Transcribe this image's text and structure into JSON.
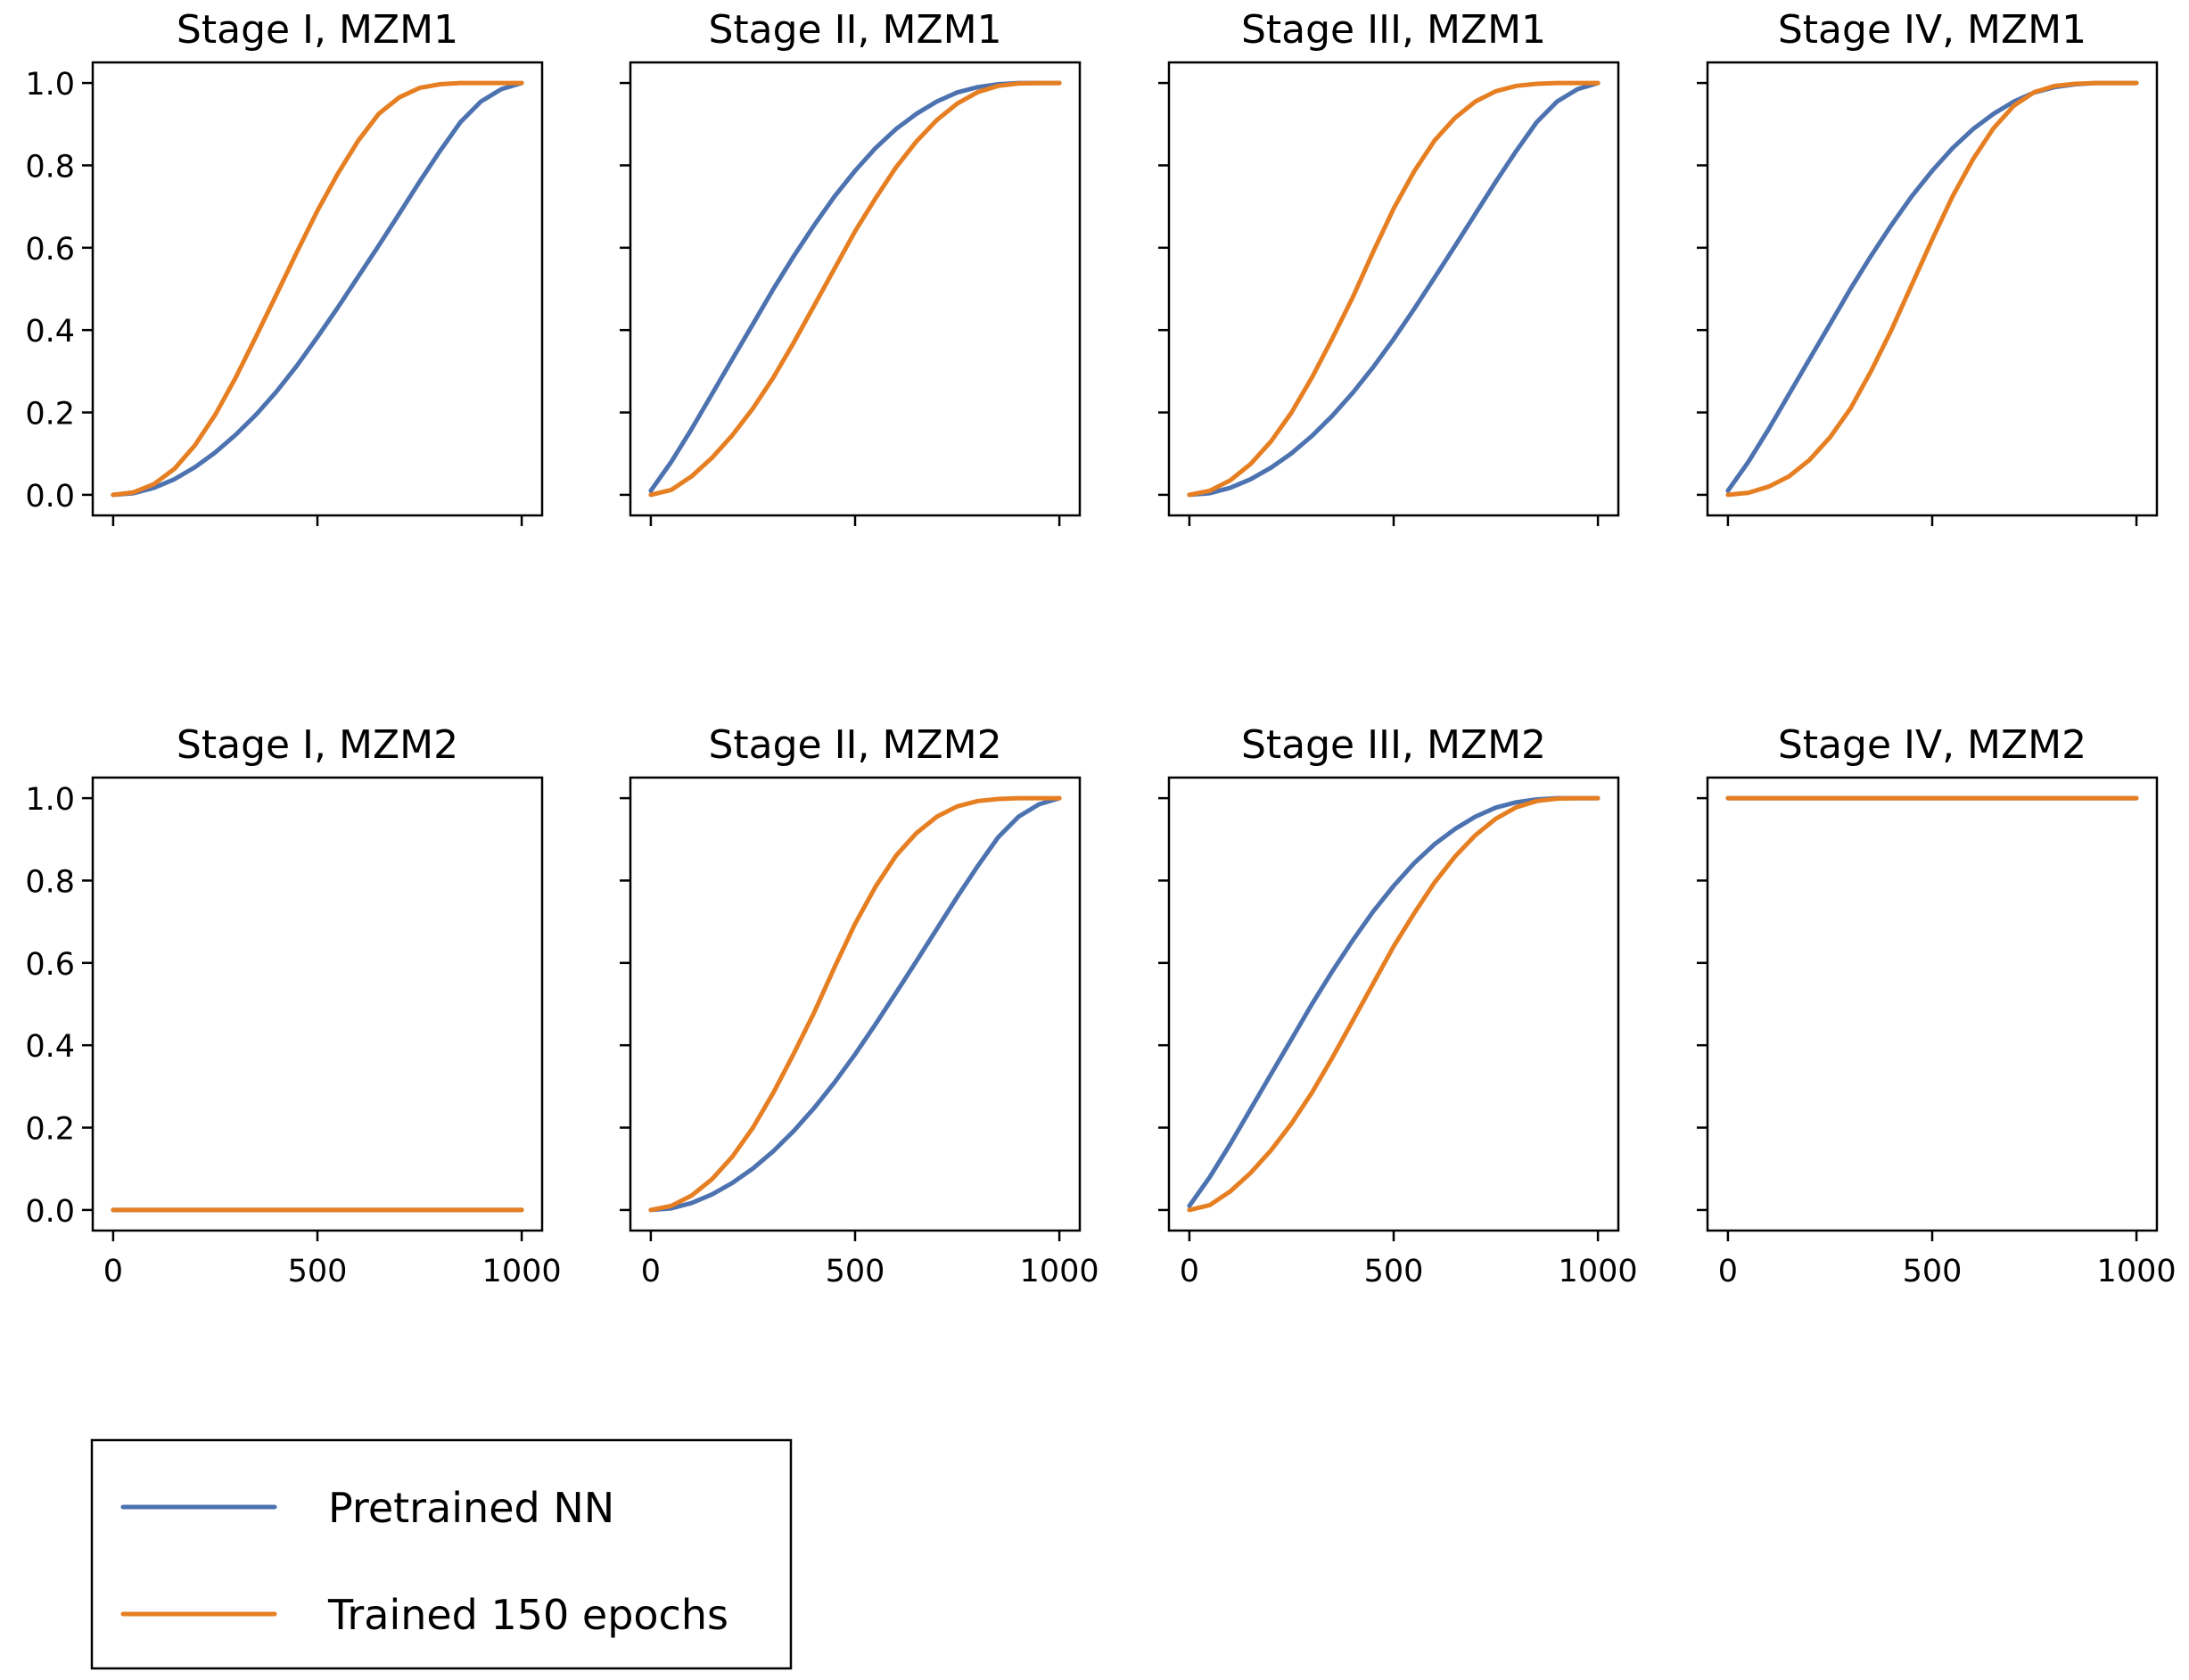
{
  "chart_data": {
    "type": "line",
    "layout": "2x4 grid of subplots",
    "sharex": true,
    "sharey": true,
    "xlim": [
      -50,
      1050
    ],
    "ylim": [
      -0.05,
      1.05
    ],
    "xticks": [
      0,
      500,
      1000
    ],
    "yticks": [
      0.0,
      0.2,
      0.4,
      0.6,
      0.8,
      1.0
    ],
    "xtick_labels": [
      "0",
      "500",
      "1000"
    ],
    "ytick_labels": [
      "0.0",
      "0.2",
      "0.4",
      "0.6",
      "0.8",
      "1.0"
    ],
    "x": [
      0,
      50,
      100,
      150,
      200,
      250,
      300,
      350,
      400,
      450,
      500,
      550,
      600,
      650,
      700,
      750,
      800,
      850,
      900,
      950,
      1000
    ],
    "legend": {
      "placement": "below the grid, left",
      "entries": [
        {
          "name": "Pretrained NN",
          "color": "#4c72b0"
        },
        {
          "name": "Trained 150 epochs",
          "color": "#e67e22"
        }
      ]
    },
    "panels": [
      {
        "title": "Stage I, MZM1",
        "series": [
          {
            "name": "Pretrained NN",
            "values": [
              0.0,
              0.004,
              0.017,
              0.038,
              0.067,
              0.103,
              0.146,
              0.195,
              0.251,
              0.314,
              0.383,
              0.455,
              0.53,
              0.605,
              0.682,
              0.76,
              0.835,
              0.905,
              0.955,
              0.985,
              1.0
            ]
          },
          {
            "name": "Trained 150 epochs",
            "values": [
              0.0,
              0.006,
              0.026,
              0.063,
              0.12,
              0.195,
              0.285,
              0.385,
              0.487,
              0.59,
              0.69,
              0.78,
              0.86,
              0.925,
              0.965,
              0.988,
              0.997,
              1.0,
              1.0,
              1.0,
              1.0
            ]
          }
        ]
      },
      {
        "title": "Stage II, MZM1",
        "series": [
          {
            "name": "Pretrained NN",
            "values": [
              0.01,
              0.08,
              0.16,
              0.245,
              0.33,
              0.415,
              0.5,
              0.58,
              0.655,
              0.725,
              0.787,
              0.842,
              0.888,
              0.925,
              0.955,
              0.977,
              0.99,
              0.997,
              1.0,
              1.0,
              1.0
            ]
          },
          {
            "name": "Trained 150 epochs",
            "values": [
              0.0,
              0.012,
              0.045,
              0.09,
              0.145,
              0.21,
              0.285,
              0.37,
              0.46,
              0.55,
              0.64,
              0.72,
              0.795,
              0.858,
              0.91,
              0.95,
              0.978,
              0.993,
              0.999,
              1.0,
              1.0
            ]
          }
        ]
      },
      {
        "title": "Stage III, MZM1",
        "series": [
          {
            "name": "Pretrained NN",
            "values": [
              0.0,
              0.004,
              0.017,
              0.038,
              0.066,
              0.101,
              0.143,
              0.192,
              0.248,
              0.31,
              0.378,
              0.451,
              0.527,
              0.604,
              0.682,
              0.76,
              0.835,
              0.905,
              0.955,
              0.985,
              1.0
            ]
          },
          {
            "name": "Trained 150 epochs",
            "values": [
              0.0,
              0.01,
              0.035,
              0.075,
              0.13,
              0.2,
              0.285,
              0.38,
              0.48,
              0.59,
              0.695,
              0.785,
              0.86,
              0.915,
              0.955,
              0.98,
              0.993,
              0.998,
              1.0,
              1.0,
              1.0
            ]
          }
        ]
      },
      {
        "title": "Stage IV, MZM1",
        "series": [
          {
            "name": "Pretrained NN",
            "values": [
              0.01,
              0.08,
              0.16,
              0.245,
              0.33,
              0.415,
              0.5,
              0.58,
              0.655,
              0.725,
              0.787,
              0.842,
              0.888,
              0.925,
              0.955,
              0.977,
              0.99,
              0.997,
              1.0,
              1.0,
              1.0
            ]
          },
          {
            "name": "Trained 150 epochs",
            "values": [
              0.0,
              0.005,
              0.02,
              0.045,
              0.085,
              0.14,
              0.21,
              0.3,
              0.4,
              0.51,
              0.62,
              0.725,
              0.815,
              0.89,
              0.945,
              0.978,
              0.993,
              0.998,
              1.0,
              1.0,
              1.0
            ]
          }
        ]
      },
      {
        "title": "Stage I, MZM2",
        "series": [
          {
            "name": "Pretrained NN",
            "values": [
              0.0,
              0.0,
              0.0,
              0.0,
              0.0,
              0.0,
              0.0,
              0.0,
              0.0,
              0.0,
              0.0,
              0.0,
              0.0,
              0.0,
              0.0,
              0.0,
              0.0,
              0.0,
              0.0,
              0.0,
              0.0
            ]
          },
          {
            "name": "Trained 150 epochs",
            "values": [
              0.0,
              0.0,
              0.0,
              0.0,
              0.0,
              0.0,
              0.0,
              0.0,
              0.0,
              0.0,
              0.0,
              0.0,
              0.0,
              0.0,
              0.0,
              0.0,
              0.0,
              0.0,
              0.0,
              0.0,
              0.0
            ]
          }
        ]
      },
      {
        "title": "Stage II, MZM2",
        "series": [
          {
            "name": "Pretrained NN",
            "values": [
              0.0,
              0.004,
              0.017,
              0.038,
              0.066,
              0.101,
              0.143,
              0.192,
              0.248,
              0.31,
              0.378,
              0.451,
              0.527,
              0.604,
              0.682,
              0.76,
              0.835,
              0.905,
              0.955,
              0.985,
              1.0
            ]
          },
          {
            "name": "Trained 150 epochs",
            "values": [
              0.0,
              0.01,
              0.035,
              0.075,
              0.13,
              0.2,
              0.285,
              0.38,
              0.48,
              0.59,
              0.695,
              0.785,
              0.86,
              0.915,
              0.955,
              0.98,
              0.993,
              0.998,
              1.0,
              1.0,
              1.0
            ]
          }
        ]
      },
      {
        "title": "Stage III, MZM2",
        "series": [
          {
            "name": "Pretrained NN",
            "values": [
              0.01,
              0.08,
              0.16,
              0.245,
              0.33,
              0.415,
              0.5,
              0.58,
              0.655,
              0.725,
              0.787,
              0.842,
              0.888,
              0.925,
              0.955,
              0.977,
              0.99,
              0.997,
              1.0,
              1.0,
              1.0
            ]
          },
          {
            "name": "Trained 150 epochs",
            "values": [
              0.0,
              0.012,
              0.045,
              0.09,
              0.145,
              0.21,
              0.285,
              0.37,
              0.46,
              0.55,
              0.64,
              0.72,
              0.795,
              0.858,
              0.91,
              0.95,
              0.978,
              0.993,
              0.999,
              1.0,
              1.0
            ]
          }
        ]
      },
      {
        "title": "Stage IV, MZM2",
        "series": [
          {
            "name": "Pretrained NN",
            "values": [
              1.0,
              1.0,
              1.0,
              1.0,
              1.0,
              1.0,
              1.0,
              1.0,
              1.0,
              1.0,
              1.0,
              1.0,
              1.0,
              1.0,
              1.0,
              1.0,
              1.0,
              1.0,
              1.0,
              1.0,
              1.0
            ]
          },
          {
            "name": "Trained 150 epochs",
            "values": [
              1.0,
              1.0,
              1.0,
              1.0,
              1.0,
              1.0,
              1.0,
              1.0,
              1.0,
              1.0,
              1.0,
              1.0,
              1.0,
              1.0,
              1.0,
              1.0,
              1.0,
              1.0,
              1.0,
              1.0,
              1.0
            ]
          }
        ]
      }
    ]
  }
}
